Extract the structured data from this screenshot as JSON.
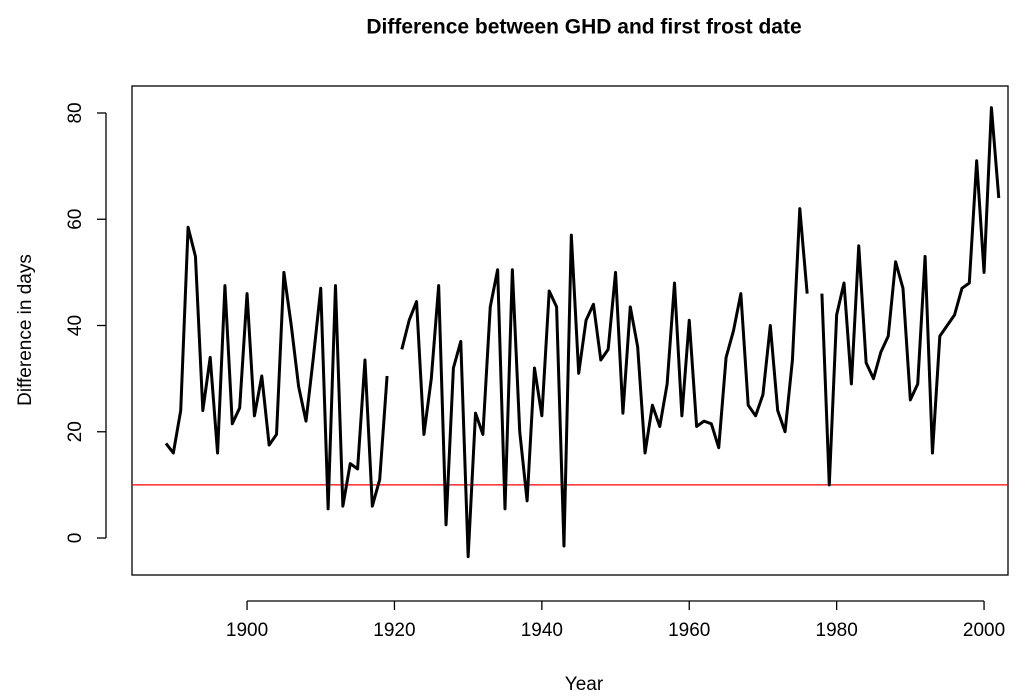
{
  "chart_data": {
    "type": "line",
    "title": "Difference between GHD and first frost date",
    "xlabel": "Year",
    "ylabel": "Difference in days",
    "x": [
      1889,
      1890,
      1891,
      1892,
      1893,
      1894,
      1895,
      1896,
      1897,
      1898,
      1899,
      1900,
      1901,
      1902,
      1903,
      1904,
      1905,
      1906,
      1907,
      1908,
      1909,
      1910,
      1911,
      1912,
      1913,
      1914,
      1915,
      1916,
      1917,
      1918,
      1919,
      1920,
      1921,
      1922,
      1923,
      1924,
      1925,
      1926,
      1927,
      1928,
      1929,
      1930,
      1931,
      1932,
      1933,
      1934,
      1935,
      1936,
      1937,
      1938,
      1939,
      1940,
      1941,
      1942,
      1943,
      1944,
      1945,
      1946,
      1947,
      1948,
      1949,
      1950,
      1951,
      1952,
      1953,
      1954,
      1955,
      1956,
      1957,
      1958,
      1959,
      1960,
      1961,
      1962,
      1963,
      1964,
      1965,
      1966,
      1967,
      1968,
      1969,
      1970,
      1971,
      1972,
      1973,
      1974,
      1975,
      1976,
      1977,
      1978,
      1979,
      1980,
      1981,
      1982,
      1983,
      1984,
      1985,
      1986,
      1987,
      1988,
      1989,
      1990,
      1991,
      1992,
      1993,
      1994,
      1995,
      1996,
      1997,
      1998,
      1999,
      2000,
      2001,
      2002
    ],
    "series": [
      {
        "name": "Difference",
        "color": "#000000",
        "values": [
          17.8,
          16,
          24,
          58.5,
          53,
          24,
          34,
          16,
          47.5,
          21.5,
          24.5,
          46,
          23,
          30.5,
          17.5,
          19.5,
          50,
          40,
          28.5,
          22,
          34,
          47,
          5.5,
          47.5,
          6,
          14,
          13,
          33.5,
          6,
          11,
          30.5,
          null,
          35.5,
          41,
          44.5,
          19.5,
          30,
          47.5,
          2.5,
          32,
          37,
          -3.5,
          23.5,
          19.5,
          43.5,
          50.5,
          5.5,
          50.5,
          20,
          7,
          32,
          23,
          46.5,
          43.5,
          -1.5,
          57,
          31,
          41,
          44,
          33.5,
          35.5,
          50,
          23.5,
          43.5,
          36,
          16,
          25,
          21,
          29,
          48,
          23,
          41,
          21,
          22,
          21.5,
          17,
          34,
          39,
          46,
          25,
          23,
          27,
          40,
          24,
          20,
          33.5,
          62,
          46,
          null,
          46,
          10,
          42,
          48,
          29,
          55,
          33,
          30,
          35,
          38,
          52,
          47,
          26,
          29,
          53,
          16,
          38,
          40,
          42,
          47,
          48,
          71,
          50,
          81,
          64
        ]
      }
    ],
    "reference_line": {
      "y": 10,
      "color": "#ff0000"
    },
    "xlim": [
      1884.39,
      2003.25
    ],
    "xticks": [
      1900,
      1920,
      1940,
      1960,
      1980,
      2000
    ],
    "ylim": [
      -6.96,
      85.08
    ],
    "yticks": [
      0,
      20,
      40,
      60,
      80
    ]
  }
}
